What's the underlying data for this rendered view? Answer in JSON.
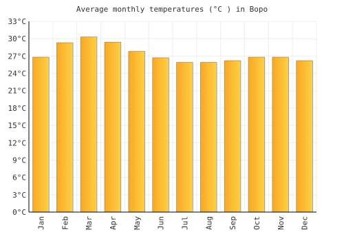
{
  "chart_data": {
    "type": "bar",
    "title": "Average monthly temperatures (°C ) in Bopo",
    "categories": [
      "Jan",
      "Feb",
      "Mar",
      "Apr",
      "May",
      "Jun",
      "Jul",
      "Aug",
      "Sep",
      "Oct",
      "Nov",
      "Dec"
    ],
    "values": [
      26.8,
      29.3,
      30.3,
      29.4,
      27.8,
      26.7,
      25.9,
      25.9,
      26.2,
      26.8,
      26.8,
      26.2
    ],
    "color": "#f9a825",
    "ylim": [
      0,
      33
    ],
    "yticks": [
      {
        "value": 0,
        "label": "0°C"
      },
      {
        "value": 3,
        "label": "3°C"
      },
      {
        "value": 6,
        "label": "6°C"
      },
      {
        "value": 9,
        "label": "9°C"
      },
      {
        "value": 12,
        "label": "12°C"
      },
      {
        "value": 15,
        "label": "15°C"
      },
      {
        "value": 18,
        "label": "18°C"
      },
      {
        "value": 21,
        "label": "21°C"
      },
      {
        "value": 24,
        "label": "24°C"
      },
      {
        "value": 27,
        "label": "27°C"
      },
      {
        "value": 30,
        "label": "30°C"
      },
      {
        "value": 33,
        "label": "33°C"
      }
    ],
    "grid": true
  }
}
